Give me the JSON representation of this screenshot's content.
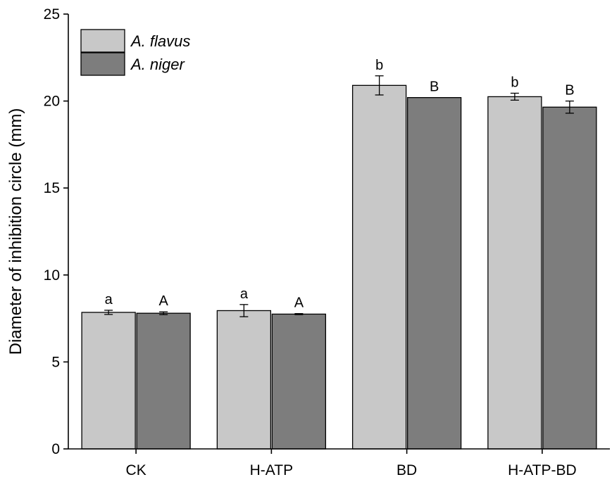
{
  "chart_data": {
    "type": "bar",
    "title": "",
    "xlabel": "",
    "ylabel": "Diameter of inhibition circle (mm)",
    "ylim": [
      0,
      25
    ],
    "yticks": [
      0,
      5,
      10,
      15,
      20,
      25
    ],
    "grid": false,
    "legend_position": "top-left",
    "categories": [
      "CK",
      "H-ATP",
      "BD",
      "H-ATP-BD"
    ],
    "series": [
      {
        "name": "A. flavus",
        "color": "#c8c8c8",
        "values": [
          7.85,
          7.95,
          20.9,
          20.25
        ],
        "errors": [
          0.12,
          0.35,
          0.55,
          0.2
        ],
        "labels": [
          "a",
          "a",
          "b",
          "b"
        ]
      },
      {
        "name": "A. niger",
        "color": "#7d7d7d",
        "values": [
          7.8,
          7.75,
          20.2,
          19.65
        ],
        "errors": [
          0.08,
          0.03,
          0.0,
          0.35
        ],
        "labels": [
          "A",
          "A",
          "B",
          "B"
        ]
      }
    ]
  }
}
